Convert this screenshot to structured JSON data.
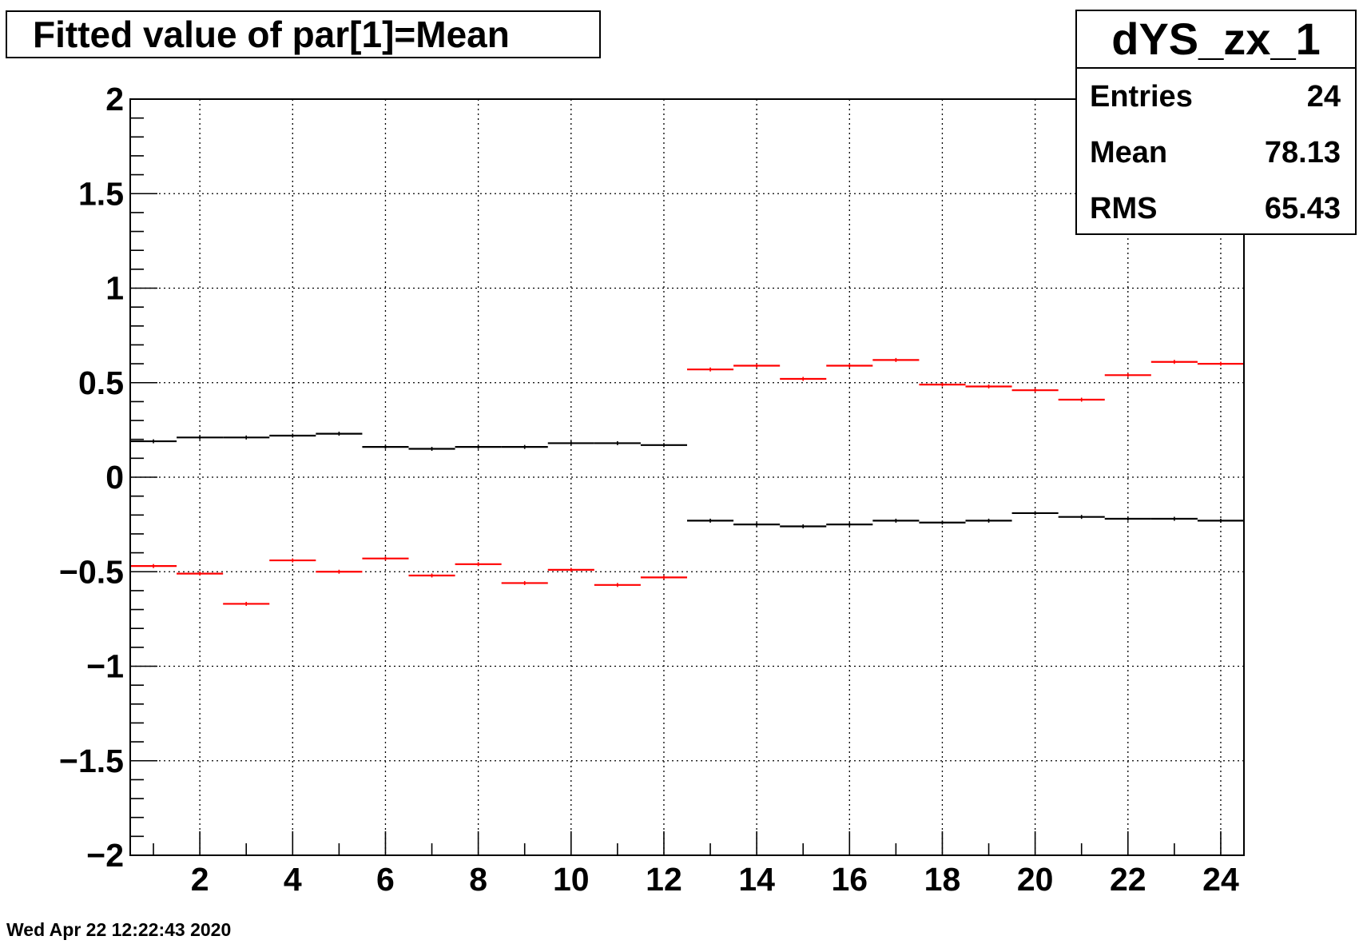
{
  "header": {
    "title": "Fitted value of par[1]=Mean"
  },
  "stats": {
    "name": "dYS_zx_1",
    "rows": [
      {
        "label": "Entries",
        "value": "24"
      },
      {
        "label": "Mean",
        "value": "78.13"
      },
      {
        "label": "RMS",
        "value": "65.43"
      }
    ]
  },
  "footer": {
    "timestamp": "Wed Apr 22 12:22:43 2020"
  },
  "colors": {
    "series_black": "#000000",
    "series_red": "#ff0000",
    "grid": "#000000"
  },
  "chart_data": {
    "type": "scatter",
    "title": "Fitted value of par[1]=Mean",
    "xlabel": "",
    "ylabel": "",
    "xlim": [
      0.5,
      24.5
    ],
    "ylim": [
      -2,
      2
    ],
    "grid": true,
    "x_ticks": [
      2,
      4,
      6,
      8,
      10,
      12,
      14,
      16,
      18,
      20,
      22,
      24
    ],
    "x_tick_labels": [
      "2",
      "4",
      "6",
      "8",
      "10",
      "12",
      "14",
      "16",
      "18",
      "20",
      "22",
      "24"
    ],
    "y_ticks": [
      -2,
      -1.5,
      -1,
      -0.5,
      0,
      0.5,
      1,
      1.5,
      2
    ],
    "y_tick_labels": [
      "−2",
      "−1.5",
      "−1",
      "−0.5",
      "0",
      "0.5",
      "1",
      "1.5",
      "2"
    ],
    "x": [
      1,
      2,
      3,
      4,
      5,
      6,
      7,
      8,
      9,
      10,
      11,
      12,
      13,
      14,
      15,
      16,
      17,
      18,
      19,
      20,
      21,
      22,
      23,
      24
    ],
    "series": [
      {
        "color": "#000000",
        "values": [
          0.19,
          0.21,
          0.21,
          0.22,
          0.23,
          0.16,
          0.15,
          0.16,
          0.16,
          0.18,
          0.18,
          0.17,
          -0.23,
          -0.25,
          -0.26,
          -0.25,
          -0.23,
          -0.24,
          -0.23,
          -0.19,
          -0.21,
          -0.22,
          -0.22,
          -0.23
        ]
      },
      {
        "color": "#ff0000",
        "values": [
          -0.47,
          -0.51,
          -0.67,
          -0.44,
          -0.5,
          -0.43,
          -0.52,
          -0.46,
          -0.56,
          -0.49,
          -0.57,
          -0.53,
          0.57,
          0.59,
          0.52,
          0.59,
          0.62,
          0.49,
          0.48,
          0.46,
          0.41,
          0.54,
          0.61,
          0.6
        ]
      }
    ]
  }
}
